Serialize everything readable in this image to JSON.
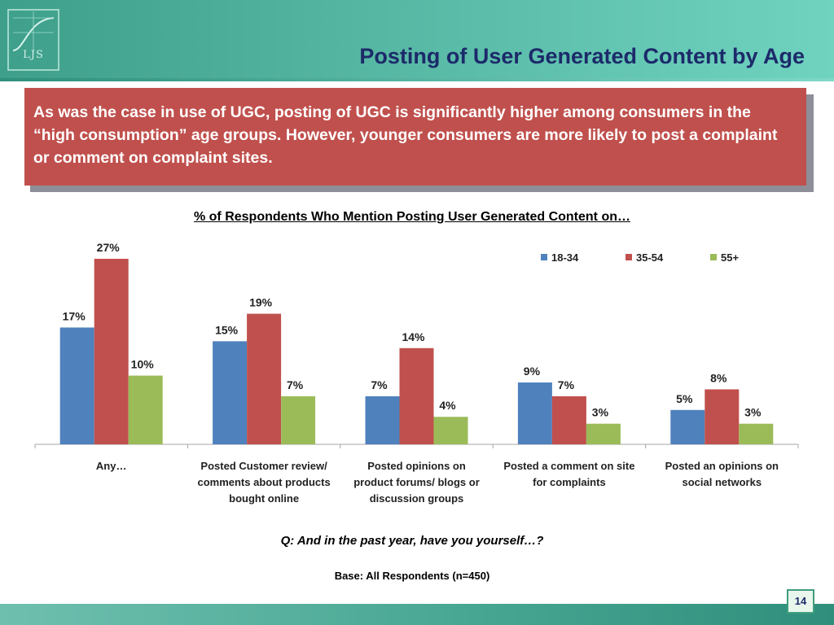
{
  "slide": {
    "title": "Posting of User Generated Content by Age",
    "logo_text": "LJS",
    "callout": "As was the case in use of UGC, posting of UGC is significantly higher among consumers in the “high consumption” age groups.  However, younger consumers are more likely to post a complaint or comment on complaint sites.",
    "question": "Q: And in the past year, have you yourself…?",
    "base": "Base: All Respondents (n=450)",
    "page_number": "14"
  },
  "colors": {
    "header": "#56b7a3",
    "callout": "#c0504d",
    "title_text": "#1c2a6a"
  },
  "chart_data": {
    "type": "bar",
    "title": "% of Respondents Who Mention Posting User Generated Content on…",
    "categories": [
      [
        "Any…"
      ],
      [
        "Posted Customer review/",
        "comments about products",
        "bought online"
      ],
      [
        "Posted opinions  on",
        "product forums/ blogs or",
        "discussion groups"
      ],
      [
        "Posted a comment on site",
        "for complaints"
      ],
      [
        "Posted an opinions  on",
        "social networks"
      ]
    ],
    "series": [
      {
        "name": "18-34",
        "color": "#4f81bd",
        "values": [
          17,
          15,
          7,
          9,
          5
        ]
      },
      {
        "name": "35-54",
        "color": "#c0504d",
        "values": [
          27,
          19,
          14,
          7,
          8
        ]
      },
      {
        "name": "55+",
        "color": "#9bbb59",
        "values": [
          10,
          7,
          4,
          3,
          3
        ]
      }
    ],
    "value_suffix": "%",
    "ylim": [
      0,
      27
    ],
    "grid": false,
    "legend": "top-right",
    "xlabel": "",
    "ylabel": ""
  }
}
